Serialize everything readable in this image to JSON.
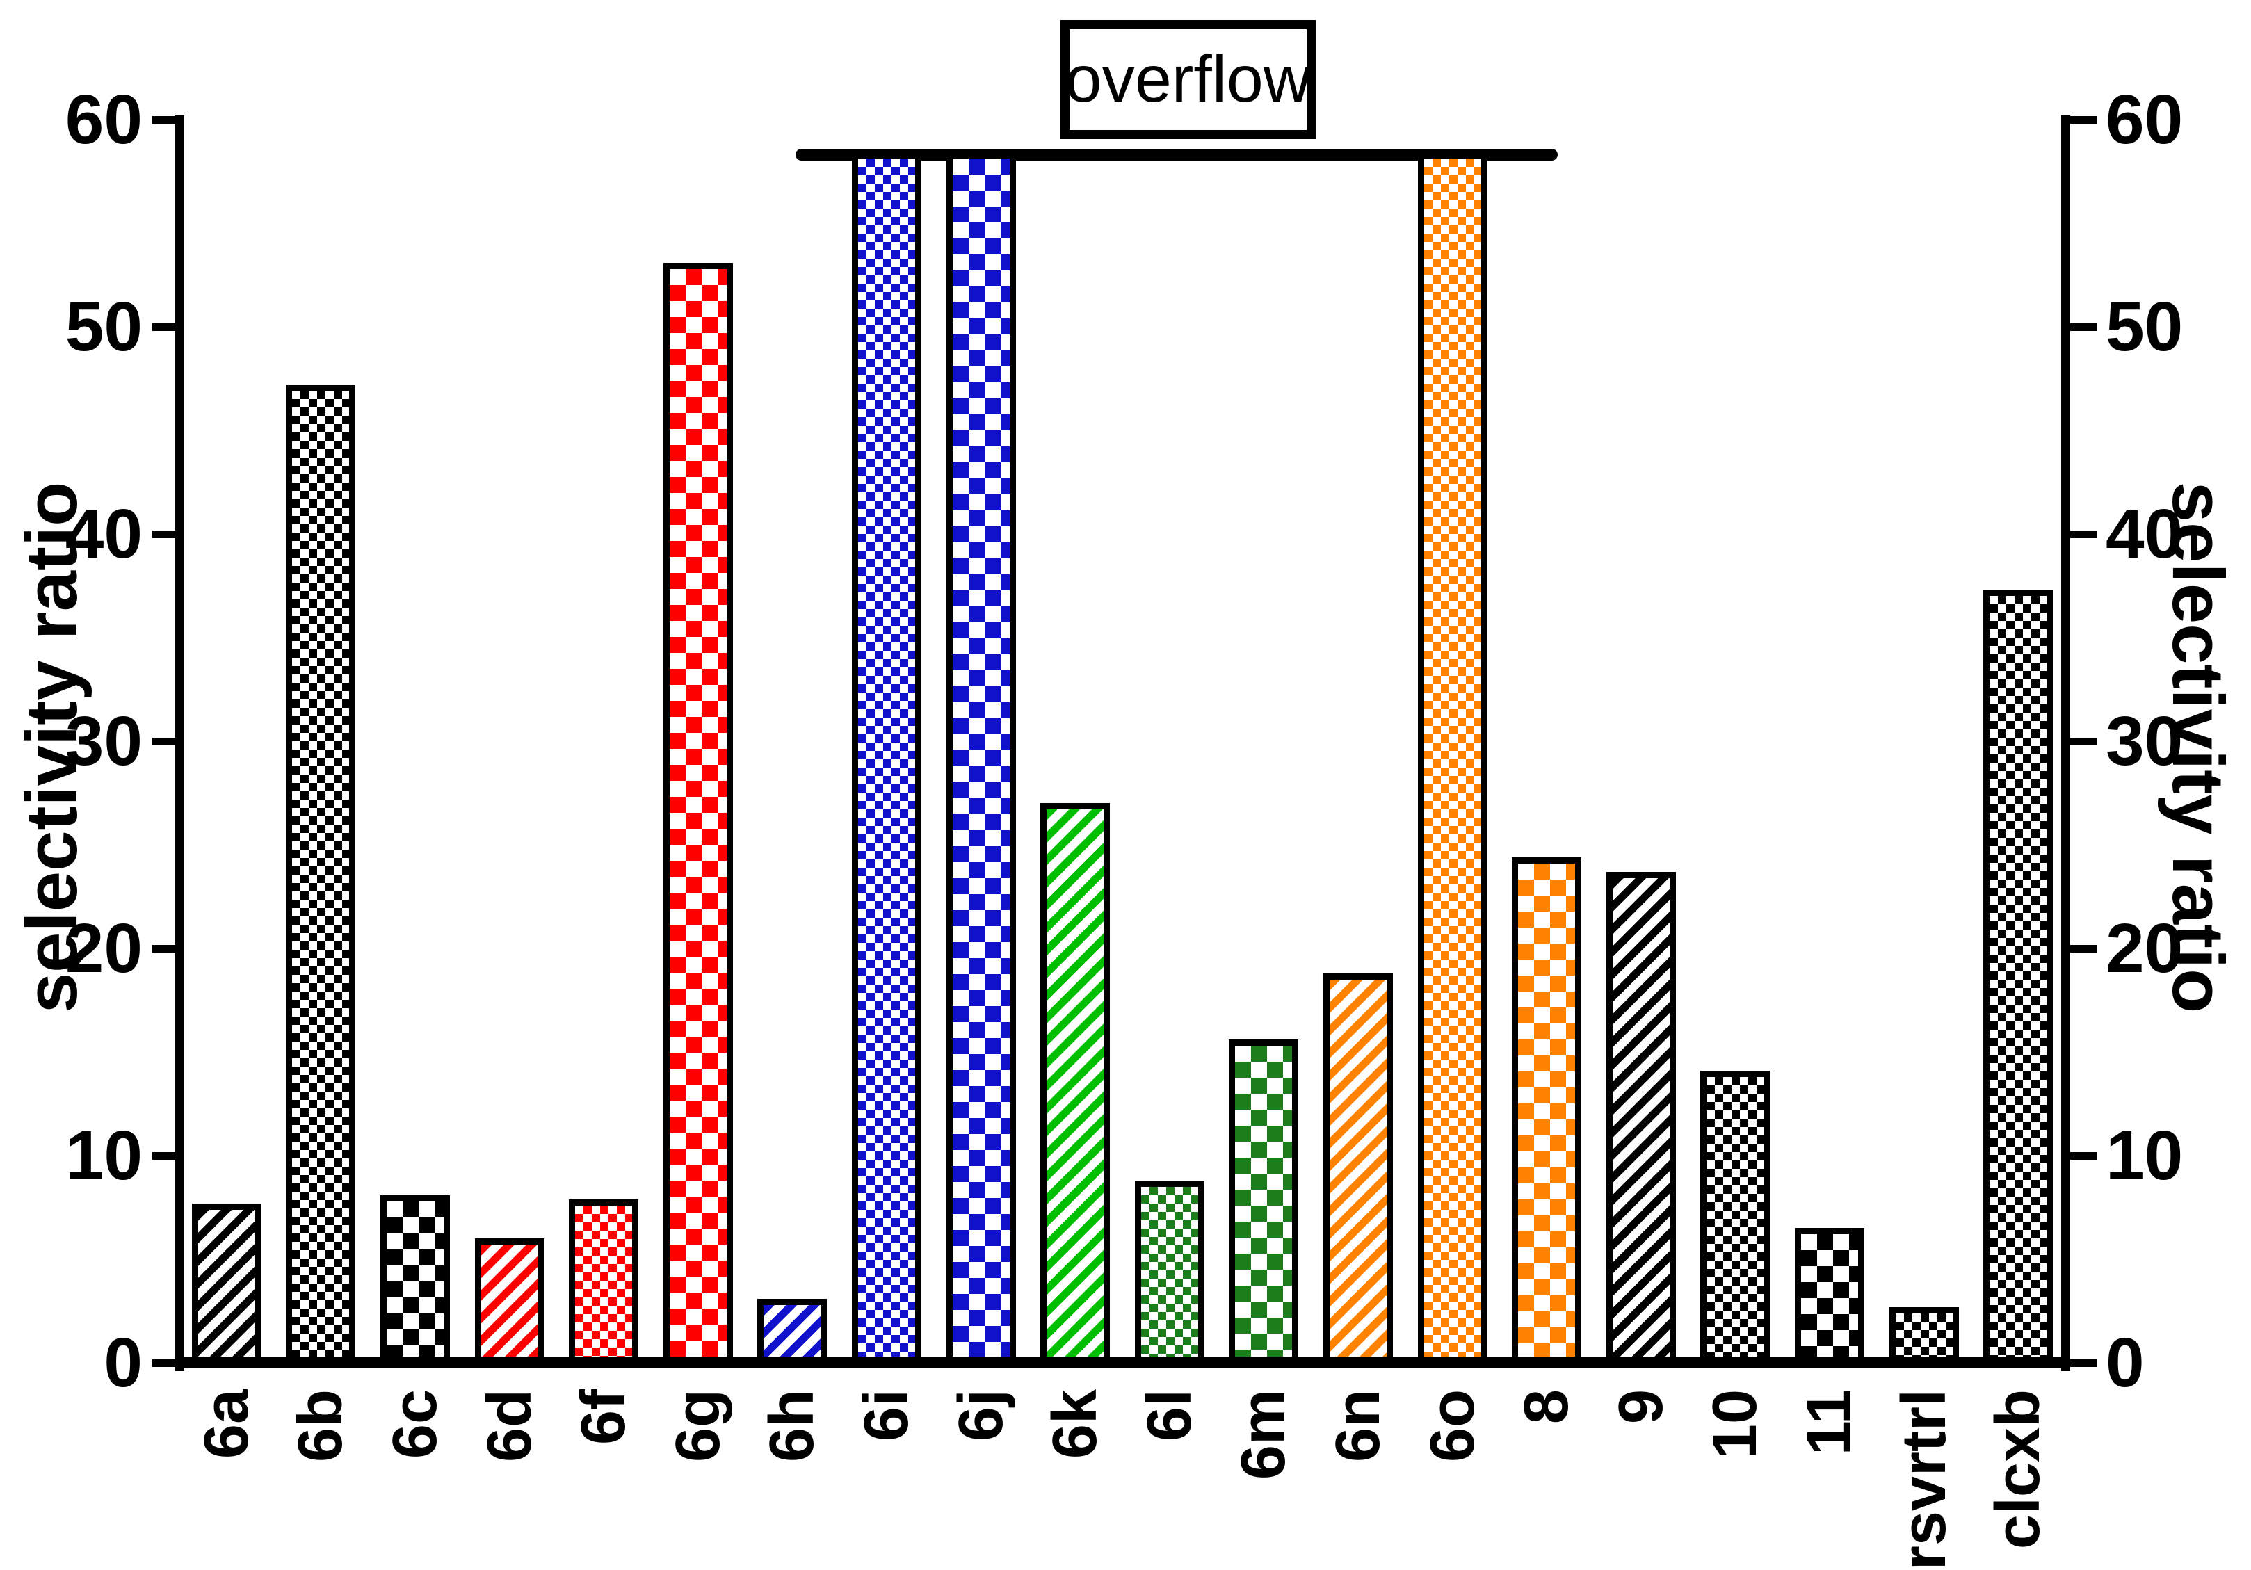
{
  "figure": {
    "background_color": "#FFFFFF",
    "axis_color": "#000000",
    "overflow_label": "overflow"
  },
  "chart_data": {
    "type": "bar",
    "title": "",
    "xlabel": "",
    "ylabel": "selectivity ratio",
    "ylabel_right": "selectivity ratio",
    "ylim": [
      0,
      60
    ],
    "yticks": [
      0,
      10,
      20,
      30,
      40,
      50,
      60
    ],
    "grid": false,
    "legend": "none",
    "categories": [
      "6a",
      "6b",
      "6c",
      "6d",
      "6f",
      "6g",
      "6h",
      "6i",
      "6j",
      "6k",
      "6l",
      "6m",
      "6n",
      "6o",
      "8",
      "9",
      "10",
      "11",
      "rsvrtrl",
      "clcxb"
    ],
    "values": [
      7.7,
      47.2,
      8.1,
      6.0,
      7.9,
      53.1,
      3.1,
      58.2,
      58.2,
      27.0,
      8.8,
      15.6,
      18.8,
      58.2,
      24.4,
      23.7,
      14.1,
      6.5,
      2.7,
      37.3
    ],
    "overflow_flags": [
      false,
      false,
      false,
      false,
      false,
      false,
      false,
      true,
      true,
      false,
      false,
      false,
      false,
      true,
      false,
      false,
      false,
      false,
      false,
      false
    ],
    "overflow_bars": [
      "6i",
      "6j",
      "6o"
    ],
    "annotation": {
      "text": "overflow",
      "style": "boxed label above a thick horizontal cutoff line spanning bars 6i through 6o, which exceed the 60-unit axis maximum"
    },
    "bar_styles": [
      {
        "pattern": "diagonal",
        "color": "black"
      },
      {
        "pattern": "fine-check",
        "color": "black"
      },
      {
        "pattern": "coarse-check",
        "color": "black"
      },
      {
        "pattern": "diagonal",
        "color": "red"
      },
      {
        "pattern": "fine-check",
        "color": "red"
      },
      {
        "pattern": "coarse-check",
        "color": "red"
      },
      {
        "pattern": "diagonal",
        "color": "blue"
      },
      {
        "pattern": "fine-check",
        "color": "blue"
      },
      {
        "pattern": "coarse-check",
        "color": "blue"
      },
      {
        "pattern": "diagonal",
        "color": "green-bright"
      },
      {
        "pattern": "fine-check",
        "color": "green-dark"
      },
      {
        "pattern": "coarse-check",
        "color": "green-dark"
      },
      {
        "pattern": "diagonal",
        "color": "orange"
      },
      {
        "pattern": "fine-check",
        "color": "orange"
      },
      {
        "pattern": "coarse-check",
        "color": "orange"
      },
      {
        "pattern": "diagonal",
        "color": "black"
      },
      {
        "pattern": "fine-check",
        "color": "black"
      },
      {
        "pattern": "coarse-check",
        "color": "black"
      },
      {
        "pattern": "fine-check",
        "color": "black"
      },
      {
        "pattern": "fine-check",
        "color": "black"
      }
    ],
    "palette": {
      "black": "#000000",
      "red": "#FF0000",
      "blue": "#1111CC",
      "green-bright": "#00BE00",
      "green-dark": "#1B7E1B",
      "orange": "#FF8300",
      "outline": "#000000"
    }
  }
}
